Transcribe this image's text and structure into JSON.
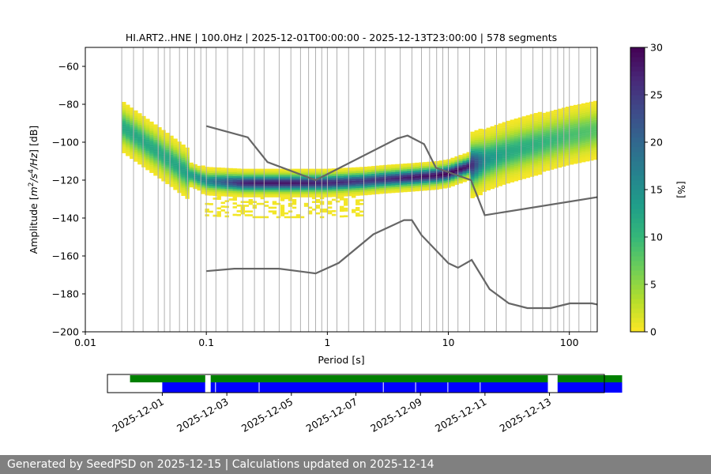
{
  "chart_data": [
    {
      "type": "heatmap",
      "title": "HI.ART2..HNE | 100.0Hz | 2025-12-01T00:00:00 - 2025-12-13T23:00:00 | 578 segments",
      "xlabel": "Period [s]",
      "ylabel_parts": [
        "Amplitude [",
        "m",
        "2",
        "/",
        "s",
        "4",
        "/",
        "Hz",
        "] [dB]"
      ],
      "xscale": "log",
      "xlim": [
        0.01,
        170
      ],
      "ylim": [
        -200,
        -50
      ],
      "x_ticks": [
        {
          "value": 0.01,
          "label": "0.01"
        },
        {
          "value": 0.1,
          "label": "0.1"
        },
        {
          "value": 1,
          "label": "1"
        },
        {
          "value": 10,
          "label": "10"
        },
        {
          "value": 100,
          "label": "100"
        }
      ],
      "y_ticks": [
        {
          "value": -60,
          "label": "−60"
        },
        {
          "value": -80,
          "label": "−80"
        },
        {
          "value": -100,
          "label": "−100"
        },
        {
          "value": -120,
          "label": "−120"
        },
        {
          "value": -140,
          "label": "−140"
        },
        {
          "value": -160,
          "label": "−160"
        },
        {
          "value": -180,
          "label": "−180"
        },
        {
          "value": -200,
          "label": "−200"
        }
      ],
      "grid": "vertical lines at PSD bin periods",
      "grid_periods": [
        0.02,
        0.025,
        0.03,
        0.04,
        0.045,
        0.05,
        0.06,
        0.07,
        0.08,
        0.09,
        0.1,
        0.12,
        0.15,
        0.2,
        0.25,
        0.3,
        0.4,
        0.5,
        0.6,
        0.7,
        0.8,
        0.9,
        1,
        1.2,
        1.5,
        2,
        2.5,
        3,
        4,
        5,
        6,
        7,
        8,
        9,
        10,
        12,
        15,
        20,
        25,
        30,
        40,
        50,
        60,
        70,
        80,
        90,
        100,
        120,
        150
      ],
      "colorbar": {
        "label": "[%]",
        "range": [
          0,
          30
        ],
        "ticks": [
          "0",
          "5",
          "10",
          "15",
          "20",
          "25",
          "30"
        ],
        "colormap": "viridis_r"
      },
      "density_mode": {
        "periods": [
          0.02,
          0.03,
          0.05,
          0.07,
          0.1,
          0.2,
          0.3,
          0.5,
          1,
          2,
          3,
          5,
          8,
          10,
          15,
          20,
          30,
          50,
          100,
          170
        ],
        "db": [
          -92,
          -100,
          -110,
          -117,
          -121,
          -122,
          -122,
          -122,
          -122,
          -121,
          -120,
          -119,
          -118,
          -117,
          -113,
          -110,
          -106,
          -102,
          -97,
          -94
        ],
        "peak_percent": [
          12,
          12,
          12,
          13,
          16,
          27,
          28,
          28,
          27,
          25,
          26,
          28,
          29,
          30,
          28,
          15,
          12,
          11,
          9,
          8
        ]
      },
      "noise_models": [
        {
          "periods": [
            0.1,
            0.22,
            0.32,
            0.8,
            3.8,
            4.6,
            6.3,
            7.9,
            15.4,
            20,
            170
          ],
          "db": [
            -91.5,
            -97.4,
            -110.5,
            -120,
            -98,
            -96.5,
            -101,
            -113.5,
            -120,
            -138.5,
            -129
          ]
        },
        {
          "periods": [
            0.1,
            0.17,
            0.4,
            0.8,
            1.24,
            2.4,
            4.3,
            5,
            6,
            10,
            12,
            15.6,
            21.9,
            31.6,
            45,
            70,
            101,
            154,
            170
          ],
          "db": [
            -168,
            -166.7,
            -166.7,
            -169.2,
            -163.7,
            -148.6,
            -141.1,
            -141.1,
            -149,
            -163.8,
            -166.2,
            -162.1,
            -177.5,
            -185,
            -187.5,
            -187.5,
            -185,
            -185,
            -185.6
          ]
        }
      ]
    },
    {
      "type": "timeline",
      "x_ticks": [
        "2025-12-01",
        "2025-12-03",
        "2025-12-05",
        "2025-12-07",
        "2025-12-09",
        "2025-12-11",
        "2025-12-13"
      ],
      "range_days": [
        -1.7,
        13.7
      ],
      "data_availability": [
        [
          -1.0,
          1.33
        ],
        [
          1.5,
          11.95
        ],
        [
          12.25,
          14.25
        ]
      ],
      "psd_segments": [
        [
          0.0,
          1.33
        ],
        [
          1.5,
          11.95
        ],
        [
          12.25,
          14.25
        ]
      ],
      "segment_gaps_days": [
        1.65,
        3.0,
        6.85,
        7.85,
        8.85,
        9.85
      ],
      "colors": {
        "data": "#008000",
        "psd": "#0000ff"
      }
    }
  ],
  "footer": "Generated by SeedPSD on 2025-12-15 | Calculations updated on 2025-12-14"
}
